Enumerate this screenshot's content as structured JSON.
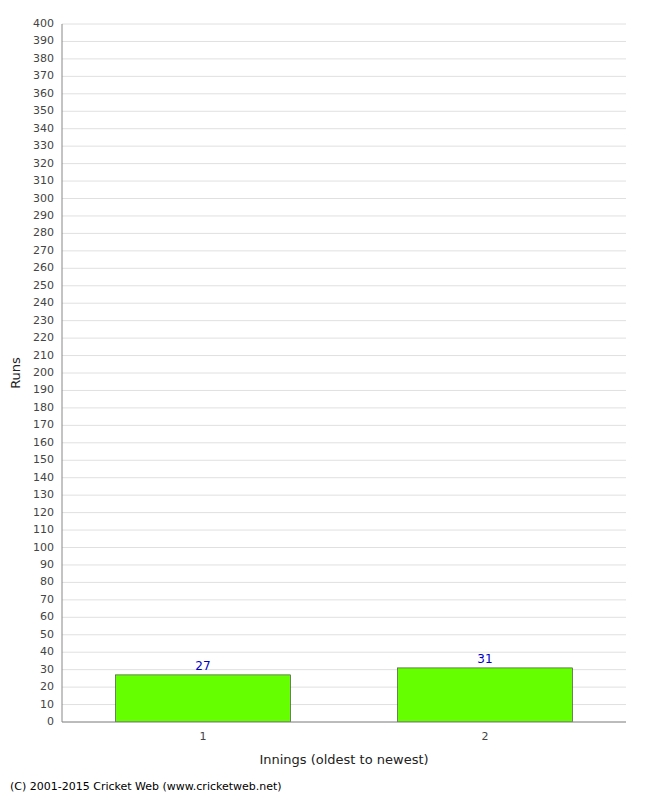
{
  "chart_data": {
    "type": "bar",
    "categories": [
      "1",
      "2"
    ],
    "values": [
      27,
      31
    ],
    "color": "#66ff00",
    "xlabel": "Innings (oldest to newest)",
    "ylabel": "Runs",
    "ylim": [
      0,
      400
    ],
    "yticks": [
      0,
      10,
      20,
      30,
      40,
      50,
      60,
      70,
      80,
      90,
      100,
      110,
      120,
      130,
      140,
      150,
      160,
      170,
      180,
      190,
      200,
      210,
      220,
      230,
      240,
      250,
      260,
      270,
      280,
      290,
      300,
      310,
      320,
      330,
      340,
      350,
      360,
      370,
      380,
      390,
      400
    ],
    "grid": true,
    "data_labels": true,
    "annotations": [
      "(C) 2001-2015 Cricket Web (www.cricketweb.net)"
    ]
  }
}
